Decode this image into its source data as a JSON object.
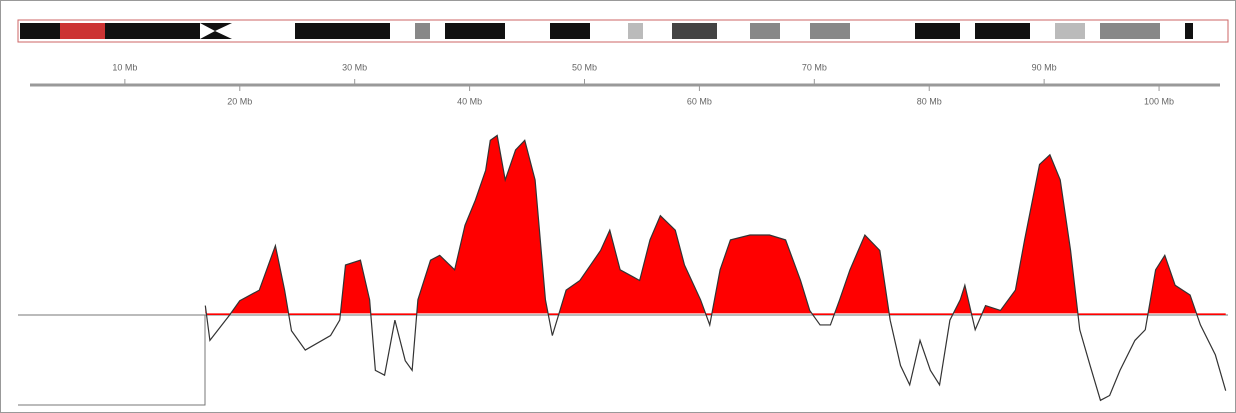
{
  "chart_data": {
    "type": "area",
    "x": [
      17.0,
      17.4,
      19.1,
      20.0,
      21.7,
      23.1,
      23.9,
      24.5,
      25.7,
      27.9,
      28.7,
      29.2,
      30.5,
      31.3,
      31.8,
      32.6,
      33.5,
      34.4,
      35.0,
      35.5,
      36.6,
      37.4,
      38.7,
      39.6,
      40.5,
      41.4,
      41.8,
      42.4,
      43.1,
      44.0,
      44.8,
      45.7,
      46.6,
      47.2,
      48.4,
      49.6,
      51.4,
      52.2,
      53.1,
      54.8,
      55.7,
      56.6,
      57.9,
      58.7,
      60.1,
      60.9,
      61.8,
      62.7,
      64.4,
      66.1,
      67.5,
      68.8,
      69.6,
      70.5,
      71.4,
      72.2,
      73.1,
      74.4,
      75.7,
      76.6,
      77.5,
      78.3,
      79.2,
      80.1,
      80.9,
      81.8,
      82.7,
      83.1,
      84.0,
      84.9,
      86.2,
      87.5,
      88.3,
      89.6,
      90.5,
      91.4,
      92.3,
      93.1,
      94.0,
      94.9,
      95.7,
      96.6,
      97.9,
      98.8,
      99.7,
      100.5,
      101.4,
      102.7,
      103.6,
      104.9,
      105.8
    ],
    "values": [
      0.08,
      -0.28,
      -0.02,
      0.13,
      0.24,
      0.7,
      0.24,
      -0.18,
      -0.38,
      -0.23,
      -0.07,
      0.5,
      0.55,
      0.14,
      -0.59,
      -0.64,
      -0.07,
      -0.49,
      -0.59,
      0.14,
      0.55,
      0.6,
      0.45,
      0.91,
      1.17,
      1.48,
      1.79,
      1.84,
      1.38,
      1.69,
      1.79,
      1.38,
      0.14,
      -0.23,
      0.24,
      0.34,
      0.65,
      0.86,
      0.45,
      0.34,
      0.76,
      1.01,
      0.86,
      0.5,
      0.14,
      -0.12,
      0.45,
      0.76,
      0.81,
      0.81,
      0.76,
      0.34,
      0.03,
      -0.12,
      -0.12,
      0.14,
      0.45,
      0.81,
      0.65,
      -0.07,
      -0.54,
      -0.74,
      -0.28,
      -0.59,
      -0.74,
      -0.07,
      0.14,
      0.29,
      -0.17,
      0.08,
      0.03,
      0.24,
      0.76,
      1.54,
      1.64,
      1.38,
      0.65,
      -0.17,
      -0.54,
      -0.9,
      -0.85,
      -0.59,
      -0.28,
      -0.17,
      0.45,
      0.6,
      0.29,
      0.19,
      -0.12,
      -0.43,
      -0.8
    ],
    "color": "#ff0000",
    "line_color": "#333333",
    "xlim": [
      0.7,
      106
    ],
    "ylim": [
      -1,
      2
    ],
    "xticks": [
      {
        "value": 10,
        "label": "10 Mb"
      },
      {
        "value": 20,
        "label": "20 Mb"
      },
      {
        "value": 30,
        "label": "30 Mb"
      },
      {
        "value": 40,
        "label": "40 Mb"
      },
      {
        "value": 50,
        "label": "50 Mb"
      },
      {
        "value": 60,
        "label": "60 Mb"
      },
      {
        "value": 70,
        "label": "70 Mb"
      },
      {
        "value": 80,
        "label": "80 Mb"
      },
      {
        "value": 90,
        "label": "90 Mb"
      },
      {
        "value": 100,
        "label": "100 Mb"
      }
    ]
  }
}
